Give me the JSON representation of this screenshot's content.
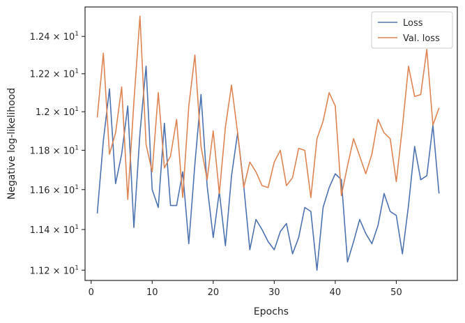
{
  "chart_data": {
    "type": "line",
    "xlabel": "Epochs",
    "ylabel": "Negative log-likelihood",
    "xlim": [
      -1,
      60
    ],
    "ylim": [
      11.15,
      12.56
    ],
    "y_scale": "log",
    "x_ticks": [
      0,
      10,
      20,
      30,
      40,
      50
    ],
    "y_ticks": [
      {
        "value": 11.2,
        "mantissa": "1.12",
        "exp": "1"
      },
      {
        "value": 11.4,
        "mantissa": "1.14",
        "exp": "1"
      },
      {
        "value": 11.6,
        "mantissa": "1.16",
        "exp": "1"
      },
      {
        "value": 11.8,
        "mantissa": "1.18",
        "exp": "1"
      },
      {
        "value": 12.0,
        "mantissa": "1.2",
        "exp": "1"
      },
      {
        "value": 12.2,
        "mantissa": "1.22",
        "exp": "1"
      },
      {
        "value": 12.4,
        "mantissa": "1.24",
        "exp": "1"
      }
    ],
    "grid": false,
    "legend_position": "top-right",
    "x": [
      1,
      2,
      3,
      4,
      5,
      6,
      7,
      8,
      9,
      10,
      11,
      12,
      13,
      14,
      15,
      16,
      17,
      18,
      19,
      20,
      21,
      22,
      23,
      24,
      25,
      26,
      27,
      28,
      29,
      30,
      31,
      32,
      33,
      34,
      35,
      36,
      37,
      38,
      39,
      40,
      41,
      42,
      43,
      44,
      45,
      46,
      47,
      48,
      49,
      50,
      51,
      52,
      53,
      54,
      55,
      56,
      57
    ],
    "series": [
      {
        "name": "Loss",
        "color": "#4c72b0",
        "values": [
          11.48,
          11.85,
          12.12,
          11.63,
          11.78,
          12.03,
          11.41,
          11.89,
          12.24,
          11.6,
          11.51,
          11.94,
          11.52,
          11.52,
          11.69,
          11.33,
          11.73,
          12.09,
          11.62,
          11.36,
          11.59,
          11.32,
          11.67,
          11.89,
          11.62,
          11.3,
          11.45,
          11.4,
          11.34,
          11.3,
          11.39,
          11.43,
          11.28,
          11.36,
          11.51,
          11.49,
          11.2,
          11.51,
          11.61,
          11.68,
          11.65,
          11.24,
          11.34,
          11.45,
          11.38,
          11.33,
          11.42,
          11.58,
          11.49,
          11.47,
          11.28,
          11.52,
          11.82,
          11.65,
          11.67,
          11.93,
          11.58
        ]
      },
      {
        "name": "Val. loss",
        "color": "#dd8452",
        "values": [
          11.97,
          12.31,
          11.78,
          11.89,
          12.13,
          11.55,
          12.05,
          12.51,
          11.83,
          11.69,
          12.1,
          11.71,
          11.77,
          11.96,
          11.56,
          12.03,
          12.3,
          11.82,
          11.65,
          11.9,
          11.58,
          11.92,
          12.14,
          11.89,
          11.61,
          11.74,
          11.69,
          11.62,
          11.61,
          11.74,
          11.8,
          11.62,
          11.66,
          11.81,
          11.8,
          11.56,
          11.86,
          11.95,
          12.1,
          12.03,
          11.57,
          11.72,
          11.86,
          11.77,
          11.68,
          11.78,
          11.96,
          11.89,
          11.86,
          11.64,
          11.92,
          12.24,
          12.08,
          12.09,
          12.33,
          11.93,
          12.02
        ]
      }
    ]
  }
}
